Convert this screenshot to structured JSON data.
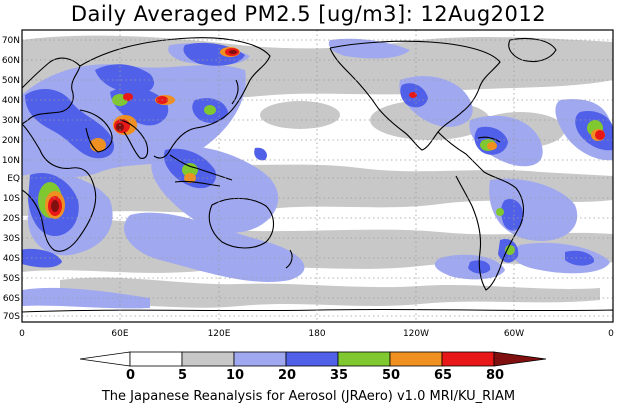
{
  "title": "Daily Averaged PM2.5 [ug/m3]: 12Aug2012",
  "footer": "The Japanese Reanalysis for Aerosol (JRAero) v1.0 MRI/KU_RIAM",
  "lat_labels": [
    "70N",
    "60N",
    "50N",
    "40N",
    "30N",
    "20N",
    "10N",
    "EQ",
    "10S",
    "20S",
    "30S",
    "40S",
    "50S",
    "60S",
    "70S"
  ],
  "lon_labels": [
    "0",
    "60E",
    "120E",
    "180",
    "120W",
    "60W",
    "0"
  ],
  "colorbar": {
    "ticks": [
      "0",
      "5",
      "10",
      "20",
      "35",
      "50",
      "65",
      "80"
    ],
    "colors": [
      "#ffffff",
      "#c8c8c8",
      "#a0a8f0",
      "#5060e8",
      "#80c830",
      "#f09020",
      "#e81818",
      "#801010"
    ]
  },
  "colors": {
    "land_line": "#000000",
    "grid": "#9a9a9a",
    "level1": "#c8c8c8",
    "level2": "#a0a8f0",
    "level3": "#5060e8",
    "level4": "#80c830",
    "level5": "#f09020",
    "level6": "#e81818",
    "level7": "#801010"
  }
}
